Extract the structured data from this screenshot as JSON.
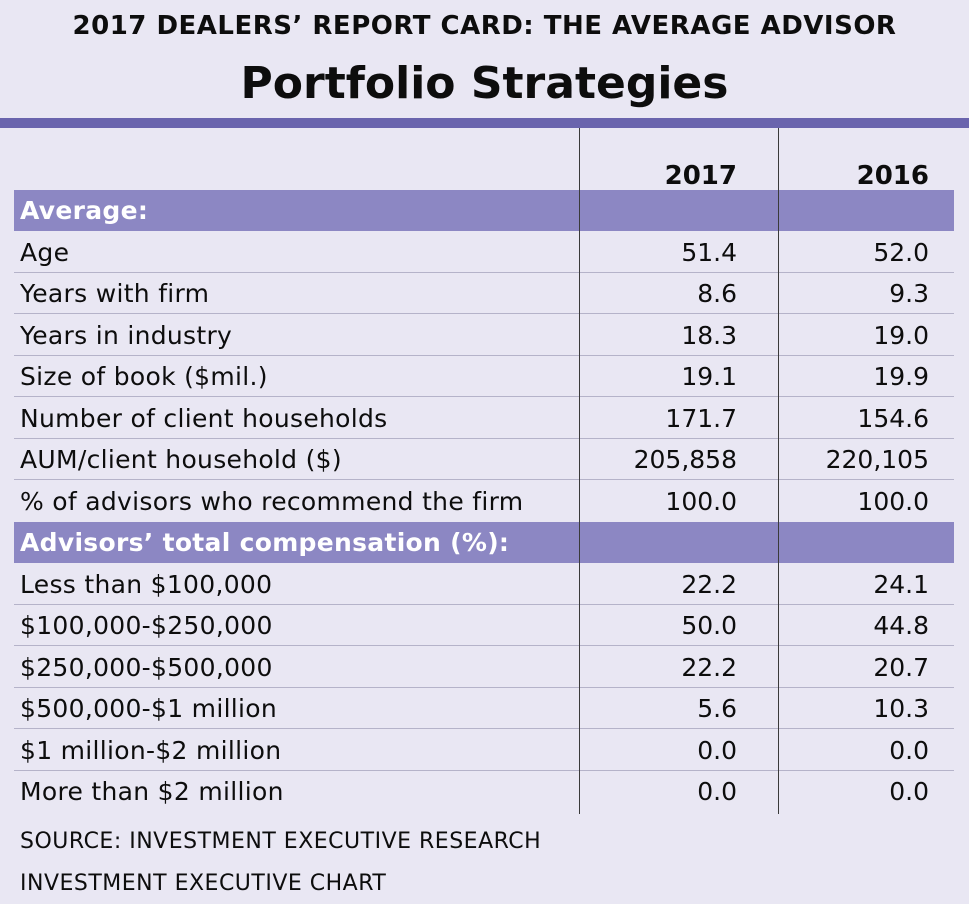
{
  "header": {
    "supertitle": "2017 DEALERS’ REPORT CARD: THE AVERAGE ADVISOR",
    "title": "Portfolio Strategies"
  },
  "colors": {
    "accent": "#6a64ad",
    "section_band": "#8c87c3",
    "background": "#e9e7f3"
  },
  "chart_data": {
    "type": "table",
    "columns": [
      "",
      "2017",
      "2016"
    ],
    "sections": [
      {
        "label": "Average:",
        "rows": [
          {
            "label": "Age",
            "values": [
              "51.4",
              "52.0"
            ]
          },
          {
            "label": "Years with firm",
            "values": [
              "8.6",
              "9.3"
            ]
          },
          {
            "label": "Years in industry",
            "values": [
              "18.3",
              "19.0"
            ]
          },
          {
            "label": "Size of book ($mil.)",
            "values": [
              "19.1",
              "19.9"
            ]
          },
          {
            "label": "Number of client households",
            "values": [
              "171.7",
              "154.6"
            ]
          },
          {
            "label": "AUM/client household ($)",
            "values": [
              "205,858",
              "220,105"
            ]
          },
          {
            "label": "% of advisors who recommend the firm",
            "values": [
              "100.0",
              "100.0"
            ]
          }
        ]
      },
      {
        "label": "Advisors’ total compensation (%):",
        "rows": [
          {
            "label": "Less than $100,000",
            "values": [
              "22.2",
              "24.1"
            ]
          },
          {
            "label": "$100,000-$250,000",
            "values": [
              "50.0",
              "44.8"
            ]
          },
          {
            "label": "$250,000-$500,000",
            "values": [
              "22.2",
              "20.7"
            ]
          },
          {
            "label": "$500,000-$1 million",
            "values": [
              "5.6",
              "10.3"
            ]
          },
          {
            "label": "$1 million-$2 million",
            "values": [
              "0.0",
              "0.0"
            ]
          },
          {
            "label": "More than $2 million",
            "values": [
              "0.0",
              "0.0"
            ]
          }
        ]
      }
    ]
  },
  "footer": {
    "source": "SOURCE: INVESTMENT EXECUTIVE RESEARCH",
    "credit": "INVESTMENT EXECUTIVE CHART"
  }
}
